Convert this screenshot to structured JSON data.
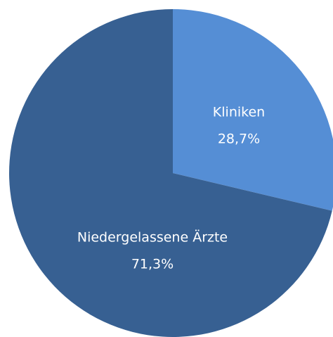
{
  "chart_data": {
    "type": "pie",
    "categories": [
      "Kliniken",
      "Niedergelassene Ärzte"
    ],
    "values": [
      28.7,
      71.3
    ],
    "value_labels": [
      "28,7%",
      "71,3%"
    ],
    "colors": [
      "#558ed5",
      "#376092"
    ]
  }
}
